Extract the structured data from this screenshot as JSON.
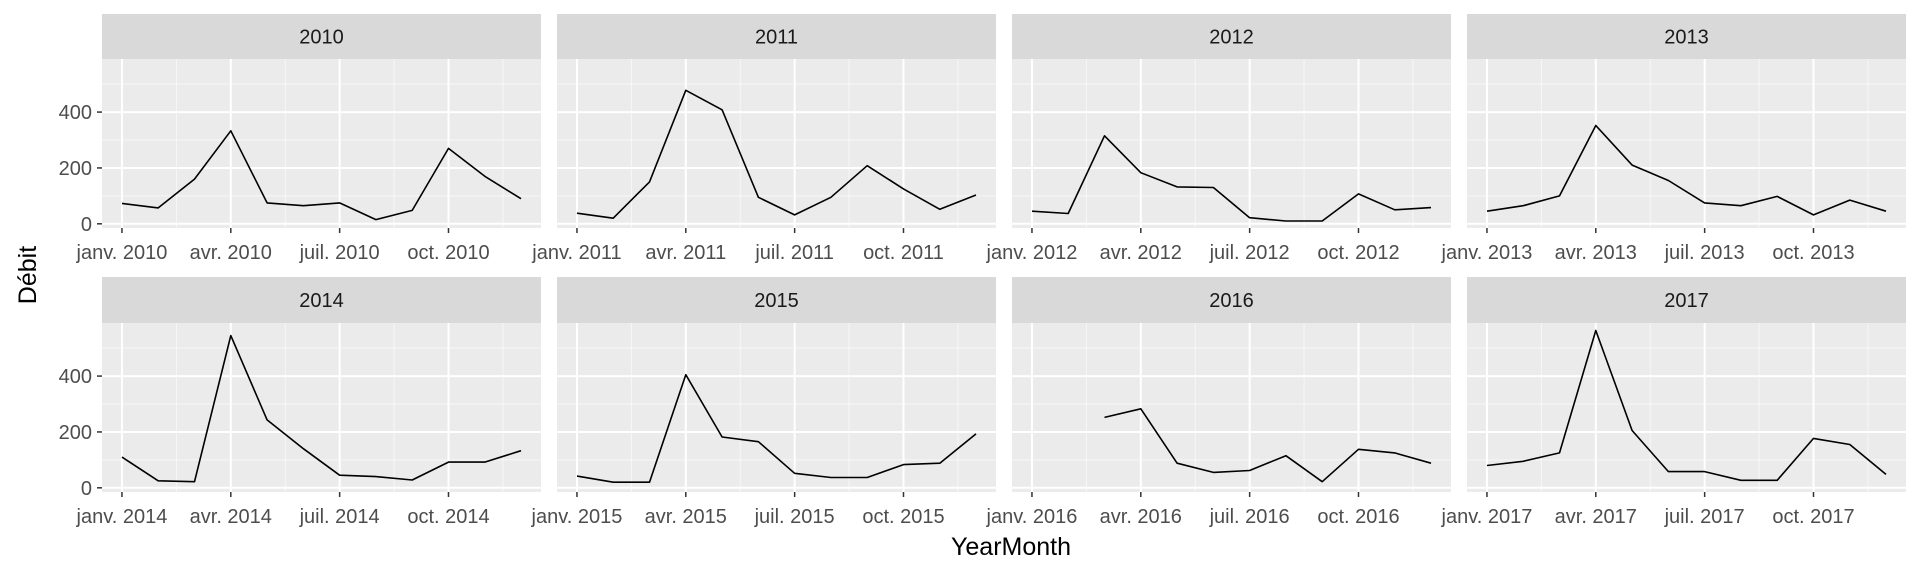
{
  "chart_data": {
    "type": "line",
    "facets": [
      "2010",
      "2011",
      "2012",
      "2013",
      "2014",
      "2015",
      "2016",
      "2017"
    ],
    "xlabel": "YearMonth",
    "ylabel": "Débit",
    "yticks": [
      0,
      200,
      400
    ],
    "ylim": [
      -15,
      590
    ],
    "grid": true,
    "x_tick_labels": [
      "janv.",
      "avr.",
      "juil.",
      "oct."
    ],
    "series": [
      {
        "year": "2010",
        "values": [
          73,
          57,
          160,
          333,
          75,
          65,
          75,
          15,
          48,
          270,
          170,
          90
        ]
      },
      {
        "year": "2011",
        "values": [
          38,
          20,
          150,
          478,
          408,
          95,
          32,
          95,
          208,
          125,
          52,
          103
        ]
      },
      {
        "year": "2012",
        "values": [
          45,
          37,
          315,
          183,
          132,
          130,
          22,
          10,
          10,
          107,
          50,
          58
        ]
      },
      {
        "year": "2013",
        "values": [
          45,
          65,
          100,
          352,
          210,
          155,
          75,
          65,
          98,
          32,
          85,
          45
        ]
      },
      {
        "year": "2014",
        "values": [
          110,
          25,
          22,
          545,
          243,
          140,
          45,
          40,
          28,
          92,
          92,
          133
        ]
      },
      {
        "year": "2015",
        "values": [
          42,
          20,
          20,
          405,
          182,
          165,
          52,
          37,
          37,
          83,
          88,
          193
        ]
      },
      {
        "year": "2016",
        "values": [
          null,
          null,
          252,
          283,
          88,
          55,
          62,
          115,
          22,
          138,
          125,
          88
        ]
      },
      {
        "year": "2017",
        "values": [
          80,
          95,
          125,
          563,
          205,
          58,
          58,
          27,
          27,
          177,
          155,
          48
        ]
      }
    ],
    "colors": {
      "panel_bg": "#EBEBEB",
      "strip_bg": "#D9D9D9",
      "grid_major": "#FFFFFF",
      "line": "#000000",
      "text": "#1A1A1A",
      "tick_text": "#4D4D4D"
    }
  }
}
